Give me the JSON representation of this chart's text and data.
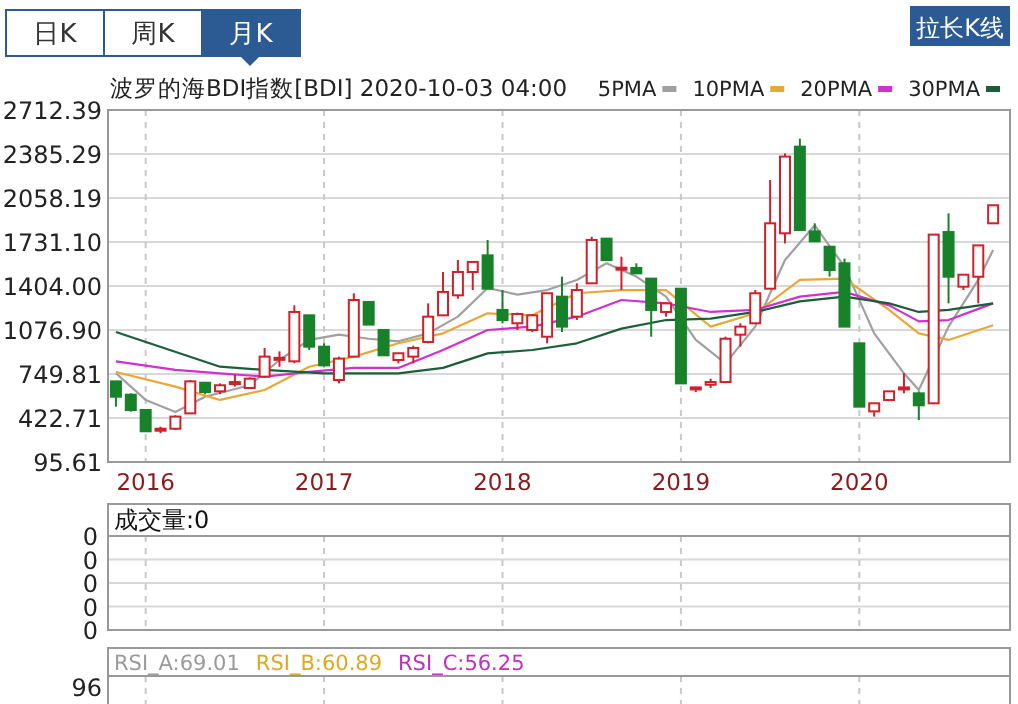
{
  "chart_data": [
    {
      "type": "candlestick",
      "title": "波罗的海BDI指数[BDI] 2020-10-03 04:00",
      "annotations": [
        "日K",
        "周K",
        "月K",
        "拉长K线"
      ],
      "x": [
        "2015-11",
        "2015-12",
        "2016-01",
        "2016-02",
        "2016-03",
        "2016-04",
        "2016-05",
        "2016-06",
        "2016-07",
        "2016-08",
        "2016-09",
        "2016-10",
        "2016-11",
        "2016-12",
        "2017-01",
        "2017-02",
        "2017-03",
        "2017-04",
        "2017-05",
        "2017-06",
        "2017-07",
        "2017-08",
        "2017-09",
        "2017-10",
        "2017-11",
        "2017-12",
        "2018-01",
        "2018-02",
        "2018-03",
        "2018-04",
        "2018-05",
        "2018-06",
        "2018-07",
        "2018-08",
        "2018-09",
        "2018-10",
        "2018-11",
        "2018-12",
        "2019-01",
        "2019-02",
        "2019-03",
        "2019-04",
        "2019-05",
        "2019-06",
        "2019-07",
        "2019-08",
        "2019-09",
        "2019-10",
        "2019-11",
        "2019-12",
        "2020-01",
        "2020-02",
        "2020-03",
        "2020-04",
        "2020-05",
        "2020-06",
        "2020-07",
        "2020-08",
        "2020-09",
        "2020-10"
      ],
      "ohlc": [
        [
          695,
          695,
          507,
          581
        ],
        [
          596,
          606,
          470,
          482
        ],
        [
          482,
          482,
          319,
          324
        ],
        [
          329,
          358,
          309,
          343
        ],
        [
          343,
          443,
          334,
          433
        ],
        [
          457,
          705,
          457,
          695
        ],
        [
          685,
          690,
          600,
          616
        ],
        [
          621,
          680,
          600,
          666
        ],
        [
          675,
          745,
          656,
          690
        ],
        [
          646,
          725,
          640,
          715
        ],
        [
          730,
          943,
          720,
          879
        ],
        [
          860,
          918,
          804,
          870
        ],
        [
          844,
          1260,
          830,
          1211
        ],
        [
          1186,
          1186,
          928,
          953
        ],
        [
          953,
          978,
          805,
          814
        ],
        [
          705,
          879,
          680,
          864
        ],
        [
          879,
          1350,
          879,
          1300
        ],
        [
          1285,
          1285,
          1117,
          1117
        ],
        [
          1077,
          1077,
          889,
          889
        ],
        [
          854,
          904,
          829,
          904
        ],
        [
          879,
          960,
          829,
          943
        ],
        [
          988,
          1275,
          978,
          1176
        ],
        [
          1186,
          1508,
          1186,
          1360
        ],
        [
          1335,
          1597,
          1310,
          1508
        ],
        [
          1508,
          1583,
          1374,
          1583
        ],
        [
          1632,
          1746,
          1384,
          1384
        ],
        [
          1226,
          1374,
          1126,
          1151
        ],
        [
          1127,
          1206,
          1077,
          1196
        ],
        [
          1077,
          1196,
          1062,
          1186
        ],
        [
          1027,
          1350,
          978,
          1350
        ],
        [
          1325,
          1474,
          1062,
          1102
        ],
        [
          1176,
          1424,
          1151,
          1374
        ],
        [
          1424,
          1770,
          1424,
          1746
        ],
        [
          1756,
          1756,
          1597,
          1597
        ],
        [
          1530,
          1622,
          1374,
          1540
        ],
        [
          1538,
          1573,
          1498,
          1498
        ],
        [
          1459,
          1459,
          1027,
          1226
        ],
        [
          1211,
          1275,
          1176,
          1275
        ],
        [
          1384,
          1384,
          680,
          680
        ],
        [
          640,
          656,
          616,
          650
        ],
        [
          670,
          715,
          646,
          690
        ],
        [
          690,
          1027,
          690,
          1012
        ],
        [
          1042,
          1127,
          953,
          1102
        ],
        [
          1127,
          1374,
          1127,
          1350
        ],
        [
          1384,
          2192,
          1384,
          1870
        ],
        [
          1796,
          2390,
          1721,
          2366
        ],
        [
          2440,
          2500,
          1820,
          1820
        ],
        [
          1810,
          1870,
          1736,
          1736
        ],
        [
          1696,
          1696,
          1474,
          1523
        ],
        [
          1573,
          1608,
          1102,
          1102
        ],
        [
          978,
          978,
          507,
          507
        ],
        [
          472,
          532,
          433,
          532
        ],
        [
          556,
          621,
          556,
          621
        ],
        [
          640,
          755,
          606,
          650
        ],
        [
          606,
          621,
          408,
          517
        ],
        [
          532,
          1786,
          532,
          1786
        ],
        [
          1805,
          1944,
          1275,
          1473
        ],
        [
          1399,
          1488,
          1374,
          1488
        ],
        [
          1473,
          1706,
          1275,
          1706
        ],
        [
          1870,
          2004,
          1870,
          2004
        ]
      ],
      "series": [
        {
          "name": "5PMA",
          "type": "line",
          "color": "#a0a0a0",
          "x": [
            "2015-11",
            "2016-01",
            "2016-03",
            "2016-05",
            "2016-08",
            "2016-10",
            "2016-12",
            "2017-02",
            "2017-04",
            "2017-06",
            "2017-08",
            "2017-10",
            "2017-12",
            "2018-02",
            "2018-04",
            "2018-06",
            "2018-08",
            "2018-10",
            "2018-12",
            "2019-02",
            "2019-04",
            "2019-06",
            "2019-08",
            "2019-10",
            "2019-12",
            "2020-02",
            "2020-04",
            "2020-05",
            "2020-07",
            "2020-09",
            "2020-10"
          ],
          "values": [
            755,
            557,
            467,
            581,
            666,
            854,
            1003,
            1042,
            1012,
            993,
            1052,
            1176,
            1389,
            1340,
            1374,
            1449,
            1573,
            1474,
            1325,
            1003,
            829,
            1102,
            1597,
            1855,
            1548,
            1052,
            755,
            631,
            1102,
            1449,
            1672
          ]
        },
        {
          "name": "10PMA",
          "type": "line",
          "color": "#e8a838",
          "x": [
            "2015-11",
            "2016-03",
            "2016-06",
            "2016-09",
            "2016-12",
            "2017-03",
            "2017-06",
            "2017-09",
            "2017-12",
            "2018-03",
            "2018-06",
            "2018-09",
            "2018-12",
            "2019-03",
            "2019-06",
            "2019-09",
            "2019-12",
            "2020-03",
            "2020-05",
            "2020-07",
            "2020-10"
          ],
          "values": [
            765,
            656,
            557,
            631,
            804,
            879,
            978,
            1052,
            1201,
            1186,
            1350,
            1374,
            1374,
            1102,
            1201,
            1449,
            1459,
            1226,
            1052,
            1003,
            1112
          ]
        },
        {
          "name": "20PMA",
          "type": "line",
          "color": "#d030d0",
          "x": [
            "2015-11",
            "2016-03",
            "2016-06",
            "2016-09",
            "2016-12",
            "2017-03",
            "2017-06",
            "2017-09",
            "2017-12",
            "2018-03",
            "2018-06",
            "2018-09",
            "2018-12",
            "2019-03",
            "2019-06",
            "2019-09",
            "2019-12",
            "2020-03",
            "2020-05",
            "2020-07",
            "2020-10"
          ],
          "values": [
            844,
            780,
            755,
            730,
            765,
            795,
            795,
            928,
            1077,
            1102,
            1176,
            1300,
            1275,
            1211,
            1226,
            1325,
            1360,
            1260,
            1141,
            1151,
            1275
          ]
        },
        {
          "name": "30PMA",
          "type": "line",
          "color": "#1d5e3a",
          "x": [
            "2015-11",
            "2016-06",
            "2016-09",
            "2017-01",
            "2017-06",
            "2017-09",
            "2017-12",
            "2018-03",
            "2018-06",
            "2018-09",
            "2018-12",
            "2019-03",
            "2019-06",
            "2019-09",
            "2019-12",
            "2020-03",
            "2020-05",
            "2020-07",
            "2020-10"
          ],
          "values": [
            1062,
            804,
            780,
            755,
            755,
            795,
            903,
            928,
            978,
            1087,
            1151,
            1161,
            1211,
            1290,
            1325,
            1275,
            1211,
            1226,
            1275
          ]
        }
      ],
      "xlim": [
        "2015-10-15",
        "2020-11-05"
      ],
      "xticks": [
        {
          "value": "2016-01",
          "label": "2016"
        },
        {
          "value": "2017-01",
          "label": "2017"
        },
        {
          "value": "2018-01",
          "label": "2018"
        },
        {
          "value": "2019-01",
          "label": "2019"
        },
        {
          "value": "2020-01",
          "label": "2020"
        }
      ],
      "ylim": [
        95.61,
        2712.39
      ],
      "yticks": [
        95.61,
        422.71,
        749.81,
        {
          "value": 1076.9,
          "label": "1076.90"
        },
        {
          "value": 1404,
          "label": "1404.00"
        },
        {
          "value": 1731.1,
          "label": "1731.10"
        },
        2058.19,
        2385.29,
        2712.39
      ],
      "grid": true,
      "legend": "top right"
    },
    {
      "type": "other",
      "title": "成交量:0",
      "annotations": [
        "0",
        "0",
        "0",
        "0",
        "0"
      ]
    },
    {
      "type": "other",
      "annotations": [
        "RSI_A:69.01",
        "RSI_B:60.89",
        "RSI_C:56.25",
        "96"
      ]
    }
  ]
}
